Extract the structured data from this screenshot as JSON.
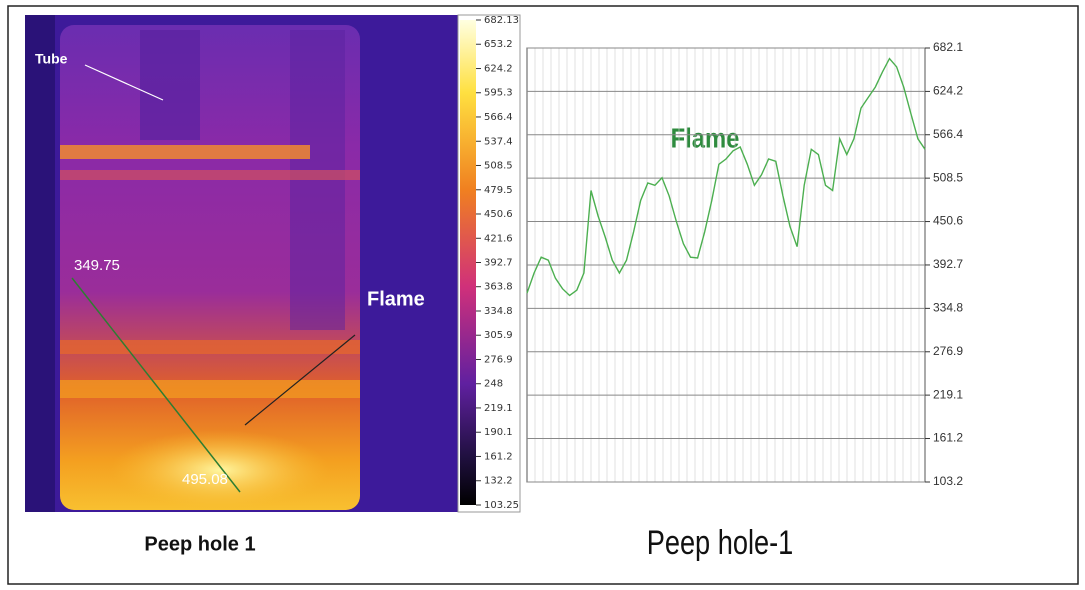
{
  "chart_data": [
    {
      "type": "thermal-image",
      "annotations": [
        "Tube",
        "Flame"
      ],
      "spot_readings": [
        349.75,
        495.08
      ],
      "caption": "Peep hole 1",
      "colorbar_lim": [
        103.25,
        682.13
      ],
      "colorbar_ticks": [
        682.13,
        653.2,
        624.2,
        595.3,
        566.4,
        537.4,
        508.5,
        479.5,
        450.6,
        421.6,
        392.7,
        363.8,
        334.8,
        305.9,
        276.9,
        248,
        219.1,
        190.1,
        161.2,
        132.2,
        103.25
      ]
    },
    {
      "type": "line",
      "annotation": "Flame",
      "caption": "Peep hole-1",
      "color": "#4caf50",
      "grid": true,
      "ylim": [
        103.2,
        682.1
      ],
      "yticks": [
        682.1,
        624.2,
        566.4,
        508.5,
        450.6,
        392.7,
        334.8,
        276.9,
        219.1,
        161.2,
        103.2
      ],
      "values": [
        355,
        382,
        403,
        399,
        375,
        361,
        352,
        359,
        382,
        492,
        458,
        430,
        399,
        382,
        399,
        437,
        479,
        502,
        499,
        509,
        485,
        451,
        421,
        403,
        402,
        437,
        479,
        527,
        534,
        545,
        550,
        527,
        499,
        513,
        534,
        531,
        485,
        444,
        417,
        499,
        547,
        540,
        499,
        492,
        561,
        540,
        561,
        602,
        616,
        630,
        650,
        668,
        657,
        630,
        595,
        561,
        547
      ]
    }
  ]
}
